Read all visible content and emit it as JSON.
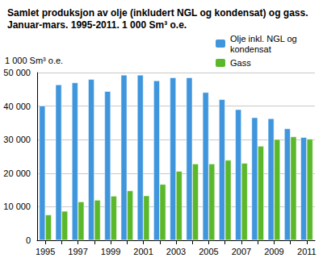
{
  "chart_data": {
    "type": "bar",
    "title": "Samlet produksjon av olje (inkludert NGL og kondensat) og gass.\nJanuar-mars. 1995-2011. 1 000 Sm³ o.e.",
    "y_label": "1 000 Sm³ o.e.",
    "categories": [
      "1995",
      null,
      "1997",
      null,
      "1999",
      null,
      "2001",
      null,
      "2003",
      null,
      "2005",
      null,
      "2007",
      null,
      "2009",
      null,
      "2011"
    ],
    "series": [
      {
        "name": "Olje inkl. NGL og kondensat",
        "color": "#3f96dc",
        "values": [
          40100,
          46400,
          47000,
          48000,
          44400,
          49300,
          49300,
          47600,
          48500,
          48500,
          44100,
          42000,
          39000,
          36600,
          36300,
          33300,
          30700
        ]
      },
      {
        "name": "Gass",
        "color": "#5cb82b",
        "values": [
          7600,
          8700,
          11500,
          12000,
          13200,
          14800,
          13300,
          16700,
          20600,
          22800,
          22800,
          23900,
          23000,
          28100,
          30100,
          30900,
          30200
        ]
      }
    ],
    "ylim": [
      0,
      50000
    ],
    "yticks": [
      0,
      {
        "value": 10000,
        "label": "10 000"
      },
      {
        "value": 20000,
        "label": "20 000"
      },
      {
        "value": 30000,
        "label": "30 000"
      },
      {
        "value": 40000,
        "label": "40 000"
      },
      {
        "value": 50000,
        "label": "50 000"
      }
    ],
    "grid": true,
    "legend": "top-right"
  }
}
